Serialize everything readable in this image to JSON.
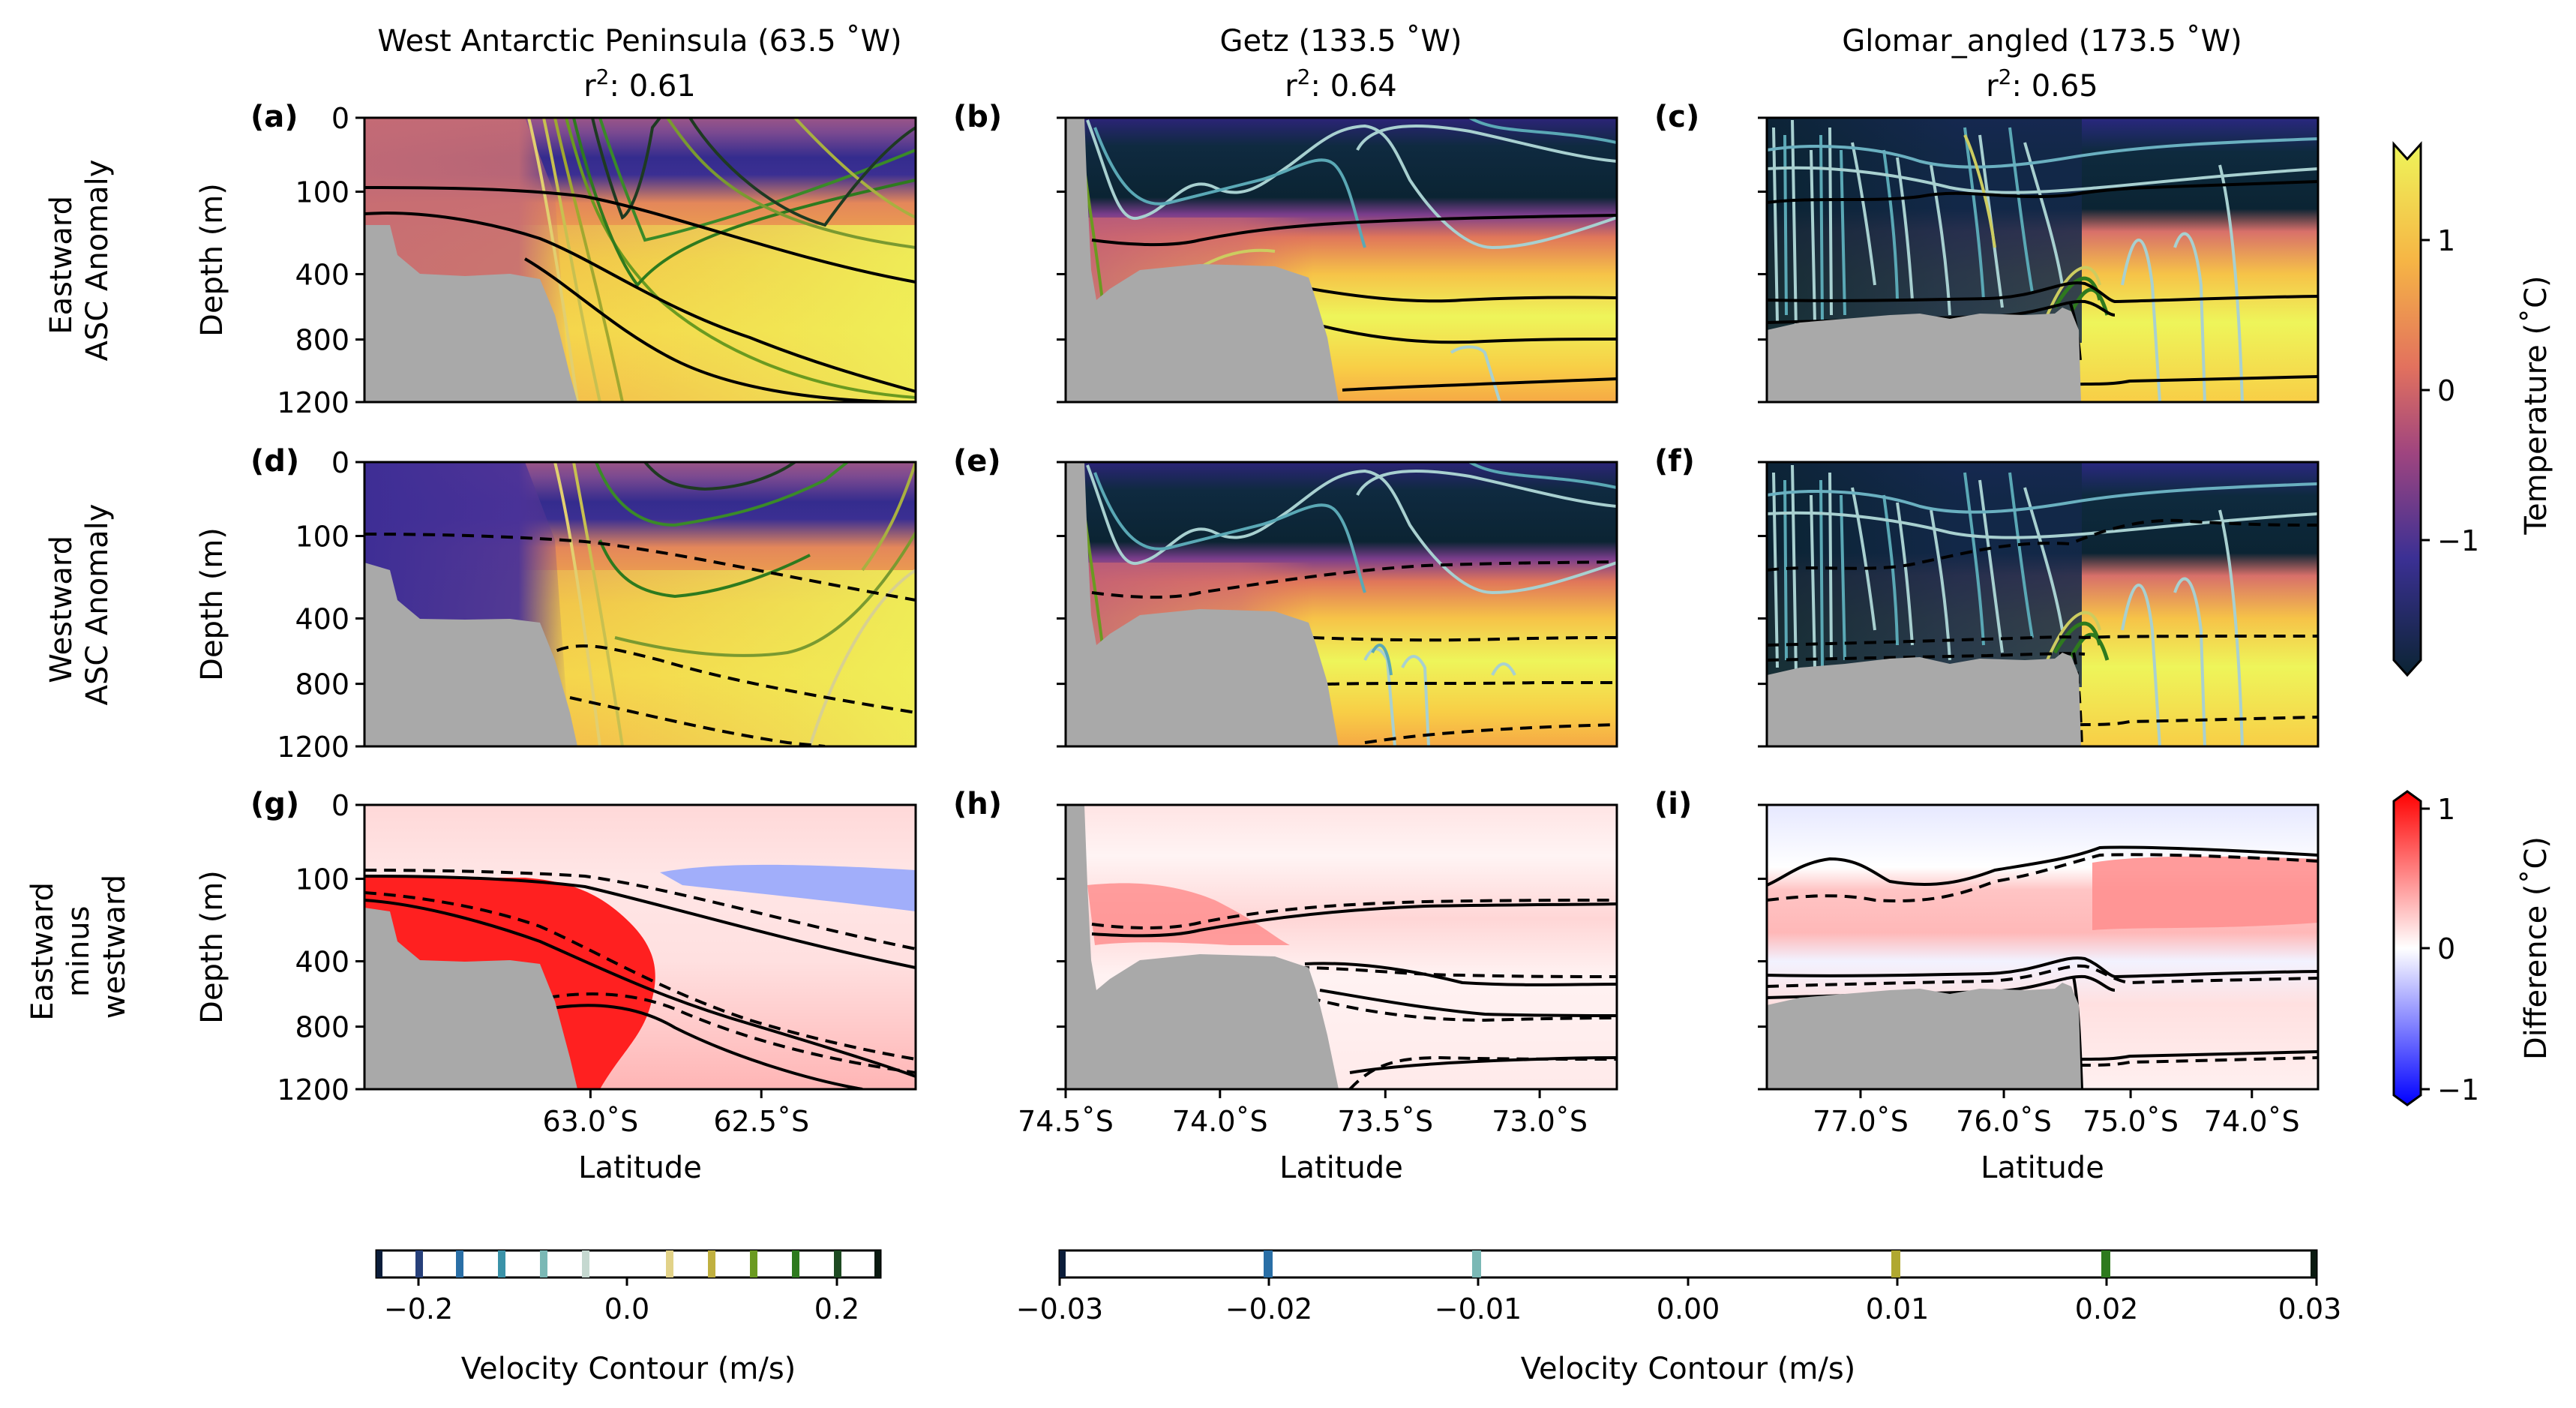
{
  "figure": {
    "columns": [
      {
        "title": "West Antarctic Peninsula (63.5 ˚W)",
        "r2_label": "r",
        "r2_sup": "2",
        "r2_value": ": 0.61"
      },
      {
        "title": "Getz (133.5 ˚W)",
        "r2_label": "r",
        "r2_sup": "2",
        "r2_value": ": 0.64"
      },
      {
        "title": "Glomar_angled (173.5 ˚W)",
        "r2_label": "r",
        "r2_sup": "2",
        "r2_value": ": 0.65"
      }
    ],
    "row_labels": [
      [
        "Eastward",
        "ASC Anomaly"
      ],
      [
        "Westward",
        "ASC Anomaly"
      ],
      [
        "Eastward",
        "minus",
        "westward"
      ]
    ],
    "panel_letters": [
      "(a)",
      "(b)",
      "(c)",
      "(d)",
      "(e)",
      "(f)",
      "(g)",
      "(h)",
      "(i)"
    ],
    "depth_axis_label": "Depth (m)",
    "lat_axis_label": "Latitude",
    "depth_ticks": [
      "0",
      "100",
      "400",
      "800",
      "1200"
    ],
    "lat_ticks": [
      [
        "63.0˚S",
        "62.5˚S"
      ],
      [
        "74.5˚S",
        "74.0˚S",
        "73.5˚S",
        "73.0˚S"
      ],
      [
        "77.0˚S",
        "76.0˚S",
        "75.0˚S",
        "74.0˚S"
      ]
    ],
    "temperature_colorbar": {
      "label": "Temperature (˚C)",
      "ticks": [
        "1",
        "0",
        "−1"
      ]
    },
    "difference_colorbar": {
      "label": "Difference (˚C)",
      "ticks": [
        "1",
        "0",
        "−1"
      ]
    },
    "velocity_colorbars": [
      {
        "label": "Velocity Contour (m/s)",
        "ticks": [
          "−0.2",
          "0.0",
          "0.2"
        ]
      },
      {
        "label": "Velocity Contour (m/s)",
        "ticks": [
          "−0.03",
          "−0.02",
          "−0.01",
          "0.00",
          "0.01",
          "0.02",
          "0.03"
        ]
      }
    ],
    "colors": {
      "land": "#a9a9a9",
      "temp_cold": "#0b2433",
      "temp_mid": "#c0637a",
      "temp_warm": "#eef55a",
      "diff_pos": "#ff0000",
      "diff_neg": "#0000ff",
      "isopycnal": "#000000"
    }
  },
  "chart_data": [
    {
      "panel": "(a)",
      "type": "contour_section",
      "section": "West Antarctic Peninsula",
      "row": "Eastward ASC Anomaly",
      "xlabel": "Latitude",
      "ylabel": "Depth (m)",
      "ylim": [
        0,
        1200
      ],
      "color_variable": "Temperature (˚C)",
      "colorbar_range": [
        -1.6,
        1.5
      ],
      "velocity_contour_levels": [
        -0.2,
        -0.16,
        -0.12,
        -0.08,
        -0.04,
        0.04,
        0.08,
        0.12,
        0.16,
        0.2
      ]
    },
    {
      "panel": "(b)",
      "type": "contour_section",
      "section": "Getz",
      "row": "Eastward ASC Anomaly",
      "xlabel": "Latitude",
      "ylabel": "Depth (m)",
      "ylim": [
        0,
        1200
      ],
      "color_variable": "Temperature (˚C)",
      "colorbar_range": [
        -1.6,
        1.5
      ],
      "velocity_contour_levels": [
        -0.03,
        -0.02,
        -0.01,
        0.01,
        0.02,
        0.03
      ]
    },
    {
      "panel": "(c)",
      "type": "contour_section",
      "section": "Glomar_angled",
      "row": "Eastward ASC Anomaly",
      "xlabel": "Latitude",
      "ylabel": "Depth (m)",
      "ylim": [
        0,
        1200
      ],
      "color_variable": "Temperature (˚C)",
      "colorbar_range": [
        -1.6,
        1.5
      ],
      "velocity_contour_levels": [
        -0.03,
        -0.02,
        -0.01,
        0.01,
        0.02,
        0.03
      ]
    },
    {
      "panel": "(d)",
      "type": "contour_section",
      "section": "West Antarctic Peninsula",
      "row": "Westward ASC Anomaly",
      "ylim": [
        0,
        1200
      ]
    },
    {
      "panel": "(e)",
      "type": "contour_section",
      "section": "Getz",
      "row": "Westward ASC Anomaly",
      "ylim": [
        0,
        1200
      ]
    },
    {
      "panel": "(f)",
      "type": "contour_section",
      "section": "Glomar_angled",
      "row": "Westward ASC Anomaly",
      "ylim": [
        0,
        1200
      ]
    },
    {
      "panel": "(g)",
      "type": "contour_section",
      "section": "West Antarctic Peninsula",
      "row": "Eastward minus westward",
      "color_variable": "Difference (˚C)",
      "colorbar_range": [
        -1,
        1
      ],
      "ylim": [
        0,
        1200
      ]
    },
    {
      "panel": "(h)",
      "type": "contour_section",
      "section": "Getz",
      "row": "Eastward minus westward",
      "color_variable": "Difference (˚C)",
      "colorbar_range": [
        -1,
        1
      ],
      "ylim": [
        0,
        1200
      ]
    },
    {
      "panel": "(i)",
      "type": "contour_section",
      "section": "Glomar_angled",
      "row": "Eastward minus westward",
      "color_variable": "Difference (˚C)",
      "colorbar_range": [
        -1,
        1
      ],
      "ylim": [
        0,
        1200
      ]
    }
  ]
}
